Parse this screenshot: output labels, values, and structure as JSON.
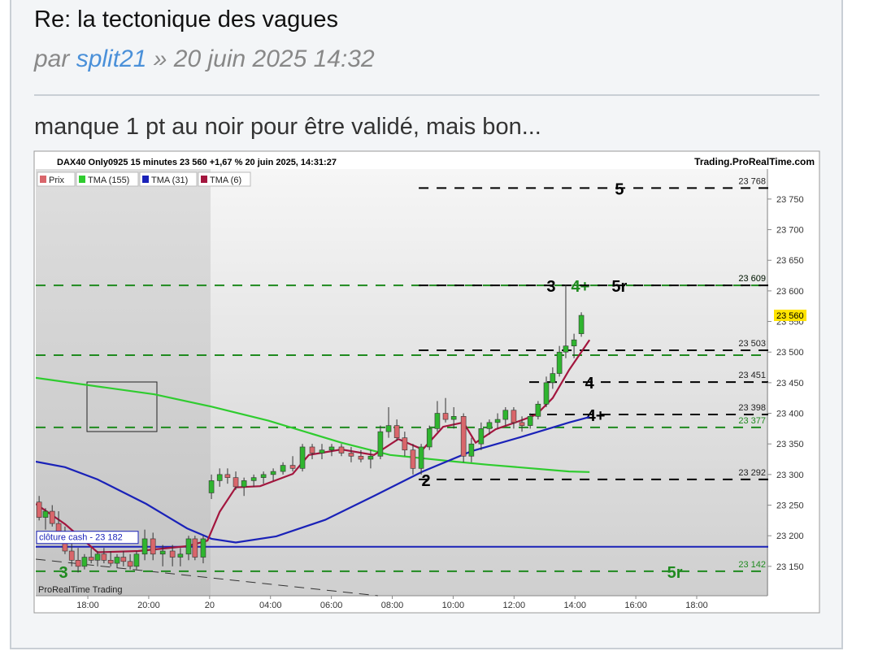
{
  "post": {
    "title": "Re: la tectonique des vagues",
    "author_prefix": "par",
    "author": "split21",
    "date": "» 20 juin 2025 14:32",
    "body": "manque 1 pt au noir pour être validé, mais bon..."
  },
  "chart_data": {
    "type": "candlestick",
    "header": "DAX40 Only0925 15 minutes 23 560 +1,67 % 20 juin 2025, 14:31:27",
    "source": "Trading.ProRealTime.com",
    "watermark": "ProRealTime Trading",
    "xlim": [
      0.29,
      24.35
    ],
    "ylim": [
      23102,
      23799
    ],
    "xticks": [
      {
        "value": 2,
        "label": "18:00"
      },
      {
        "value": 4,
        "label": "20:00"
      },
      {
        "value": 6,
        "label": "20"
      },
      {
        "value": 8,
        "label": "04:00"
      },
      {
        "value": 10,
        "label": "06:00"
      },
      {
        "value": 12,
        "label": "08:00"
      },
      {
        "value": 14,
        "label": "10:00"
      },
      {
        "value": 16,
        "label": "12:00"
      },
      {
        "value": 18,
        "label": "14:00"
      },
      {
        "value": 20,
        "label": "16:00"
      },
      {
        "value": 22,
        "label": "18:00"
      }
    ],
    "yticks": [
      {
        "value": 23150,
        "label": "23 150"
      },
      {
        "value": 23200,
        "label": "23 200"
      },
      {
        "value": 23250,
        "label": "23 250"
      },
      {
        "value": 23300,
        "label": "23 300"
      },
      {
        "value": 23350,
        "label": "23 350"
      },
      {
        "value": 23400,
        "label": "23 400"
      },
      {
        "value": 23450,
        "label": "23 450"
      },
      {
        "value": 23500,
        "label": "23 500"
      },
      {
        "value": 23550,
        "label": "23 550"
      },
      {
        "value": 23600,
        "label": "23 600"
      },
      {
        "value": 23650,
        "label": "23 650"
      },
      {
        "value": 23700,
        "label": "23 700"
      },
      {
        "value": 23750,
        "label": "23 750"
      }
    ],
    "candles": {
      "name": "Prix",
      "up_color": "#2fb52f",
      "down_color": "#d9666b",
      "x": [
        0.4,
        0.61,
        0.83,
        1.04,
        1.25,
        1.47,
        1.68,
        1.89,
        2.11,
        2.32,
        2.53,
        2.75,
        2.96,
        3.17,
        3.39,
        3.6,
        3.87,
        4.14,
        4.46,
        4.78,
        5.04,
        5.31,
        5.52,
        5.79,
        6.06,
        6.33,
        6.59,
        6.86,
        7.13,
        7.45,
        7.77,
        8.09,
        8.41,
        8.73,
        9.05,
        9.37,
        9.69,
        10.01,
        10.33,
        10.65,
        10.97,
        11.29,
        11.61,
        11.88,
        12.15,
        12.41,
        12.68,
        12.95,
        13.22,
        13.48,
        13.75,
        14.02,
        14.34,
        14.6,
        14.92,
        15.19,
        15.46,
        15.72,
        15.99,
        16.26,
        16.53,
        16.79,
        17.06,
        17.27,
        17.49,
        17.7,
        17.97,
        18.21
      ],
      "open": [
        23255,
        23230,
        23240,
        23220,
        23205,
        23175,
        23160,
        23150,
        23165,
        23160,
        23170,
        23160,
        23155,
        23165,
        23158,
        23150,
        23170,
        23195,
        23170,
        23175,
        23165,
        23170,
        23195,
        23165,
        23270,
        23290,
        23300,
        23295,
        23280,
        23290,
        23295,
        23300,
        23305,
        23315,
        23310,
        23345,
        23335,
        23340,
        23345,
        23335,
        23330,
        23325,
        23330,
        23370,
        23380,
        23360,
        23340,
        23310,
        23345,
        23375,
        23400,
        23390,
        23395,
        23330,
        23350,
        23375,
        23385,
        23390,
        23405,
        23385,
        23380,
        23395,
        23415,
        23450,
        23465,
        23500,
        23510,
        23530
      ],
      "high": [
        23265,
        23245,
        23250,
        23240,
        23215,
        23190,
        23180,
        23170,
        23180,
        23175,
        23180,
        23175,
        23170,
        23175,
        23170,
        23175,
        23210,
        23205,
        23185,
        23185,
        23180,
        23200,
        23200,
        23200,
        23300,
        23310,
        23310,
        23305,
        23295,
        23300,
        23305,
        23310,
        23320,
        23330,
        23350,
        23350,
        23350,
        23350,
        23350,
        23345,
        23340,
        23340,
        23380,
        23410,
        23390,
        23370,
        23350,
        23350,
        23380,
        23420,
        23425,
        23410,
        23400,
        23360,
        23385,
        23390,
        23400,
        23410,
        23410,
        23395,
        23400,
        23420,
        23460,
        23475,
        23510,
        23610,
        23530,
        23565
      ],
      "low": [
        23225,
        23210,
        23215,
        23200,
        23170,
        23150,
        23140,
        23145,
        23155,
        23150,
        23155,
        23150,
        23148,
        23150,
        23145,
        23145,
        23160,
        23160,
        23150,
        23150,
        23150,
        23160,
        23160,
        23155,
        23260,
        23280,
        23285,
        23275,
        23265,
        23280,
        23285,
        23290,
        23300,
        23305,
        23305,
        23325,
        23325,
        23330,
        23330,
        23320,
        23320,
        23310,
        23325,
        23360,
        23355,
        23330,
        23300,
        23300,
        23340,
        23370,
        23385,
        23375,
        23320,
        23320,
        23340,
        23365,
        23375,
        23380,
        23375,
        23370,
        23375,
        23390,
        23410,
        23440,
        23460,
        23490,
        23490,
        23525
      ],
      "close": [
        23230,
        23240,
        23220,
        23205,
        23175,
        23160,
        23150,
        23165,
        23160,
        23170,
        23160,
        23155,
        23165,
        23158,
        23150,
        23170,
        23195,
        23170,
        23175,
        23165,
        23170,
        23195,
        23165,
        23195,
        23290,
        23300,
        23295,
        23280,
        23290,
        23295,
        23300,
        23305,
        23315,
        23310,
        23345,
        23335,
        23340,
        23345,
        23335,
        23330,
        23325,
        23330,
        23370,
        23380,
        23360,
        23340,
        23310,
        23345,
        23375,
        23400,
        23390,
        23395,
        23330,
        23350,
        23375,
        23385,
        23390,
        23405,
        23385,
        23380,
        23395,
        23415,
        23450,
        23465,
        23500,
        23510,
        23520,
        23560
      ]
    },
    "series": [
      {
        "name": "TMA (155)",
        "color": "#2fcc2f",
        "x": [
          0.29,
          4.19,
          6.06,
          7.93,
          10.33,
          11.93,
          14.07,
          15.14,
          17.81,
          18.48
        ],
        "values": [
          23458,
          23431,
          23411,
          23388,
          23352,
          23332,
          23321,
          23316,
          23305,
          23304
        ]
      },
      {
        "name": "TMA (31)",
        "color": "#1a22b8",
        "x": [
          0.29,
          1.25,
          2.32,
          3.92,
          5.26,
          6.06,
          6.86,
          8.19,
          9.8,
          11.4,
          13.0,
          14.6,
          16.21,
          17.81,
          18.48
        ],
        "values": [
          23321,
          23312,
          23292,
          23252,
          23212,
          23195,
          23189,
          23199,
          23226,
          23265,
          23305,
          23338,
          23361,
          23385,
          23394
        ]
      },
      {
        "name": "TMA (6)",
        "color": "#a3163e",
        "x": [
          0.29,
          1.25,
          2.32,
          3.66,
          5.26,
          5.93,
          6.33,
          6.86,
          7.66,
          8.73,
          9.26,
          10.33,
          11.4,
          12.2,
          13.0,
          13.67,
          14.34,
          14.74,
          15.4,
          16.21,
          16.74,
          17.27,
          17.81,
          18.48
        ],
        "values": [
          23252,
          23219,
          23173,
          23175,
          23183,
          23192,
          23239,
          23279,
          23281,
          23301,
          23332,
          23341,
          23332,
          23358,
          23341,
          23378,
          23385,
          23352,
          23374,
          23388,
          23398,
          23425,
          23471,
          23520
        ]
      }
    ],
    "levels": [
      {
        "value": 23768,
        "label": "23 768",
        "color": "#000000",
        "start": 12.87,
        "notes": [
          {
            "text": "5",
            "x": 19.46
          }
        ]
      },
      {
        "value": 23609,
        "label": "23 609",
        "color": "#1f8a1f",
        "notes": [
          {
            "text": "4+",
            "x": 18.18
          }
        ]
      },
      {
        "value": 23609,
        "label": "23 609",
        "color": "#000000",
        "start": 12.87,
        "notes": [
          {
            "text": "3",
            "x": 17.22
          },
          {
            "text": "5r",
            "x": 19.46
          }
        ]
      },
      {
        "value": 23503,
        "label": "23 503",
        "color": "#000000",
        "start": 12.87,
        "notes": []
      },
      {
        "value": 23495,
        "color": "#1f8a1f",
        "notes": []
      },
      {
        "value": 23451,
        "label": "23 451",
        "color": "#000000",
        "start": 16.5,
        "notes": [
          {
            "text": "4",
            "x": 18.48
          }
        ]
      },
      {
        "value": 23398,
        "label": "23 398",
        "color": "#000000",
        "start": 16.5,
        "notes": [
          {
            "text": "4+",
            "x": 18.69
          }
        ]
      },
      {
        "value": 23377,
        "label": "23 377",
        "color": "#1f8a1f",
        "notes": []
      },
      {
        "value": 23292,
        "label": "23 292",
        "color": "#000000",
        "start": 12.87,
        "notes": [
          {
            "text": "2",
            "x": 13.11
          }
        ]
      },
      {
        "value": 23142,
        "label": "23 142",
        "color": "#1f8a1f",
        "notes": [
          {
            "text": "3",
            "x": 1.2
          },
          {
            "text": "5r",
            "x": 21.28
          }
        ]
      }
    ],
    "close_cash": {
      "value": 23182,
      "label": "clôture cash -  23 182",
      "color": "#1a22b8"
    },
    "last": {
      "value": 23560,
      "label": "23 560"
    }
  }
}
